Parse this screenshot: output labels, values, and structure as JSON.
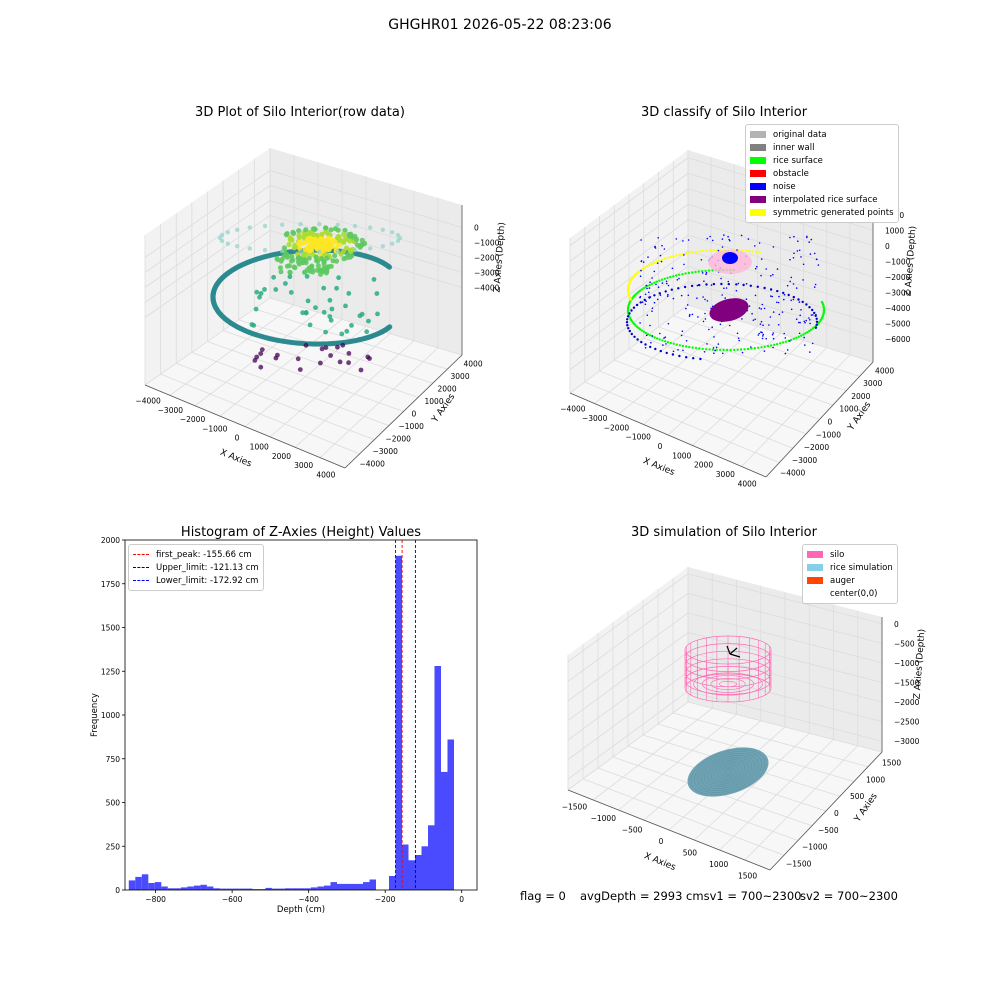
{
  "suptitle": "GHGHR01 2026-05-22 08:23:06",
  "colors": {
    "original": "#b3b3b3",
    "inner_wall": "#808080",
    "rice_surface": "#00ff00",
    "obstacle": "#ff0000",
    "noise": "#0000ff",
    "interpolated": "#800080",
    "symmetric": "#ffff00",
    "silo": "#ff69b4",
    "rice_sim": "#87ceeb",
    "auger": "#ff4500",
    "hist": "#4a4aff"
  },
  "chart_data": [
    {
      "type": "scatter",
      "title": "3D Plot of Silo Interior(row data)",
      "xlabel": "X Axies",
      "ylabel": "Y Axies",
      "zlabel": "Z Axies (Depth)",
      "x_ticks": [
        "−4000",
        "−3000",
        "−2000",
        "−1000",
        "0",
        "1000",
        "2000",
        "3000",
        "4000"
      ],
      "y_ticks": [
        "−4000",
        "−3000",
        "−2000",
        "−1000",
        "0",
        "1000",
        "2000",
        "3000",
        "4000"
      ],
      "z_ticks": [
        "−4000",
        "−3000",
        "−2000",
        "−1000",
        "0"
      ],
      "colormap": "viridis by depth"
    },
    {
      "type": "scatter",
      "title": "3D classify of Silo Interior",
      "xlabel": "X Axies",
      "ylabel": "Y Axies",
      "zlabel": "Z Axies (Depth)",
      "x_ticks": [
        "−4000",
        "−3000",
        "−2000",
        "−1000",
        "0",
        "1000",
        "2000",
        "3000",
        "4000"
      ],
      "y_ticks": [
        "−4000",
        "−3000",
        "−2000",
        "−1000",
        "0",
        "1000",
        "2000",
        "3000",
        "4000"
      ],
      "z_ticks": [
        "−6000",
        "−5000",
        "−4000",
        "−3000",
        "−2000",
        "−1000",
        "0",
        "1000",
        "2000"
      ],
      "legend": [
        "original data",
        "inner wall",
        "rice surface",
        "obstacle",
        "noise",
        "interpolated rice surface",
        "symmetric generated points"
      ]
    },
    {
      "type": "bar",
      "title": "Histogram of Z-Axies (Height) Values",
      "xlabel": "Depth (cm)",
      "ylabel": "Frequency",
      "xlim": [
        -880,
        40
      ],
      "ylim": [
        0,
        2000
      ],
      "x_ticks": [
        -800,
        -600,
        -400,
        -200,
        0
      ],
      "x_tick_labels": [
        "−800",
        "−600",
        "−400",
        "−200",
        "0"
      ],
      "y_ticks": [
        0,
        250,
        500,
        750,
        1000,
        1250,
        1500,
        1750,
        2000
      ],
      "bin_start": -870,
      "bin_width": 17,
      "values": [
        55,
        75,
        90,
        40,
        45,
        20,
        10,
        10,
        15,
        20,
        25,
        30,
        20,
        10,
        8,
        8,
        8,
        8,
        8,
        5,
        5,
        12,
        8,
        8,
        10,
        10,
        10,
        10,
        15,
        20,
        25,
        45,
        35,
        35,
        35,
        35,
        45,
        60,
        0,
        0,
        80,
        1910,
        260,
        170,
        200,
        250,
        370,
        1280,
        675,
        860
      ],
      "vlines": [
        {
          "label": "first_peak: -155.66 cm",
          "x": -155.66,
          "color": "#ff0000"
        },
        {
          "label": "Upper_limit: -121.13 cm",
          "x": -121.13,
          "color": "#00008b"
        },
        {
          "label": "Lower_limit: -172.92 cm",
          "x": -172.92,
          "color": "#0000ff"
        }
      ]
    },
    {
      "type": "scatter",
      "title": "3D simulation of Silo Interior",
      "xlabel": "X Axies",
      "ylabel": "Y Axies",
      "zlabel": "Z Axies (Depth)",
      "x_ticks": [
        "−1500",
        "−1000",
        "−500",
        "0",
        "500",
        "1000",
        "1500"
      ],
      "y_ticks": [
        "−1500",
        "−1000",
        "−500",
        "0",
        "500",
        "1000",
        "1500"
      ],
      "z_ticks": [
        "−3000",
        "−2500",
        "−2000",
        "−1500",
        "−1000",
        "−500",
        "0"
      ],
      "legend": [
        "silo",
        "rice simulation",
        "auger",
        "center(0,0)"
      ]
    }
  ],
  "footer": {
    "flag": "flag = 0",
    "avg": "avgDepth = 2993 cmsv1 = 700~2300",
    "sv2": "sv2 = 700~2300"
  }
}
